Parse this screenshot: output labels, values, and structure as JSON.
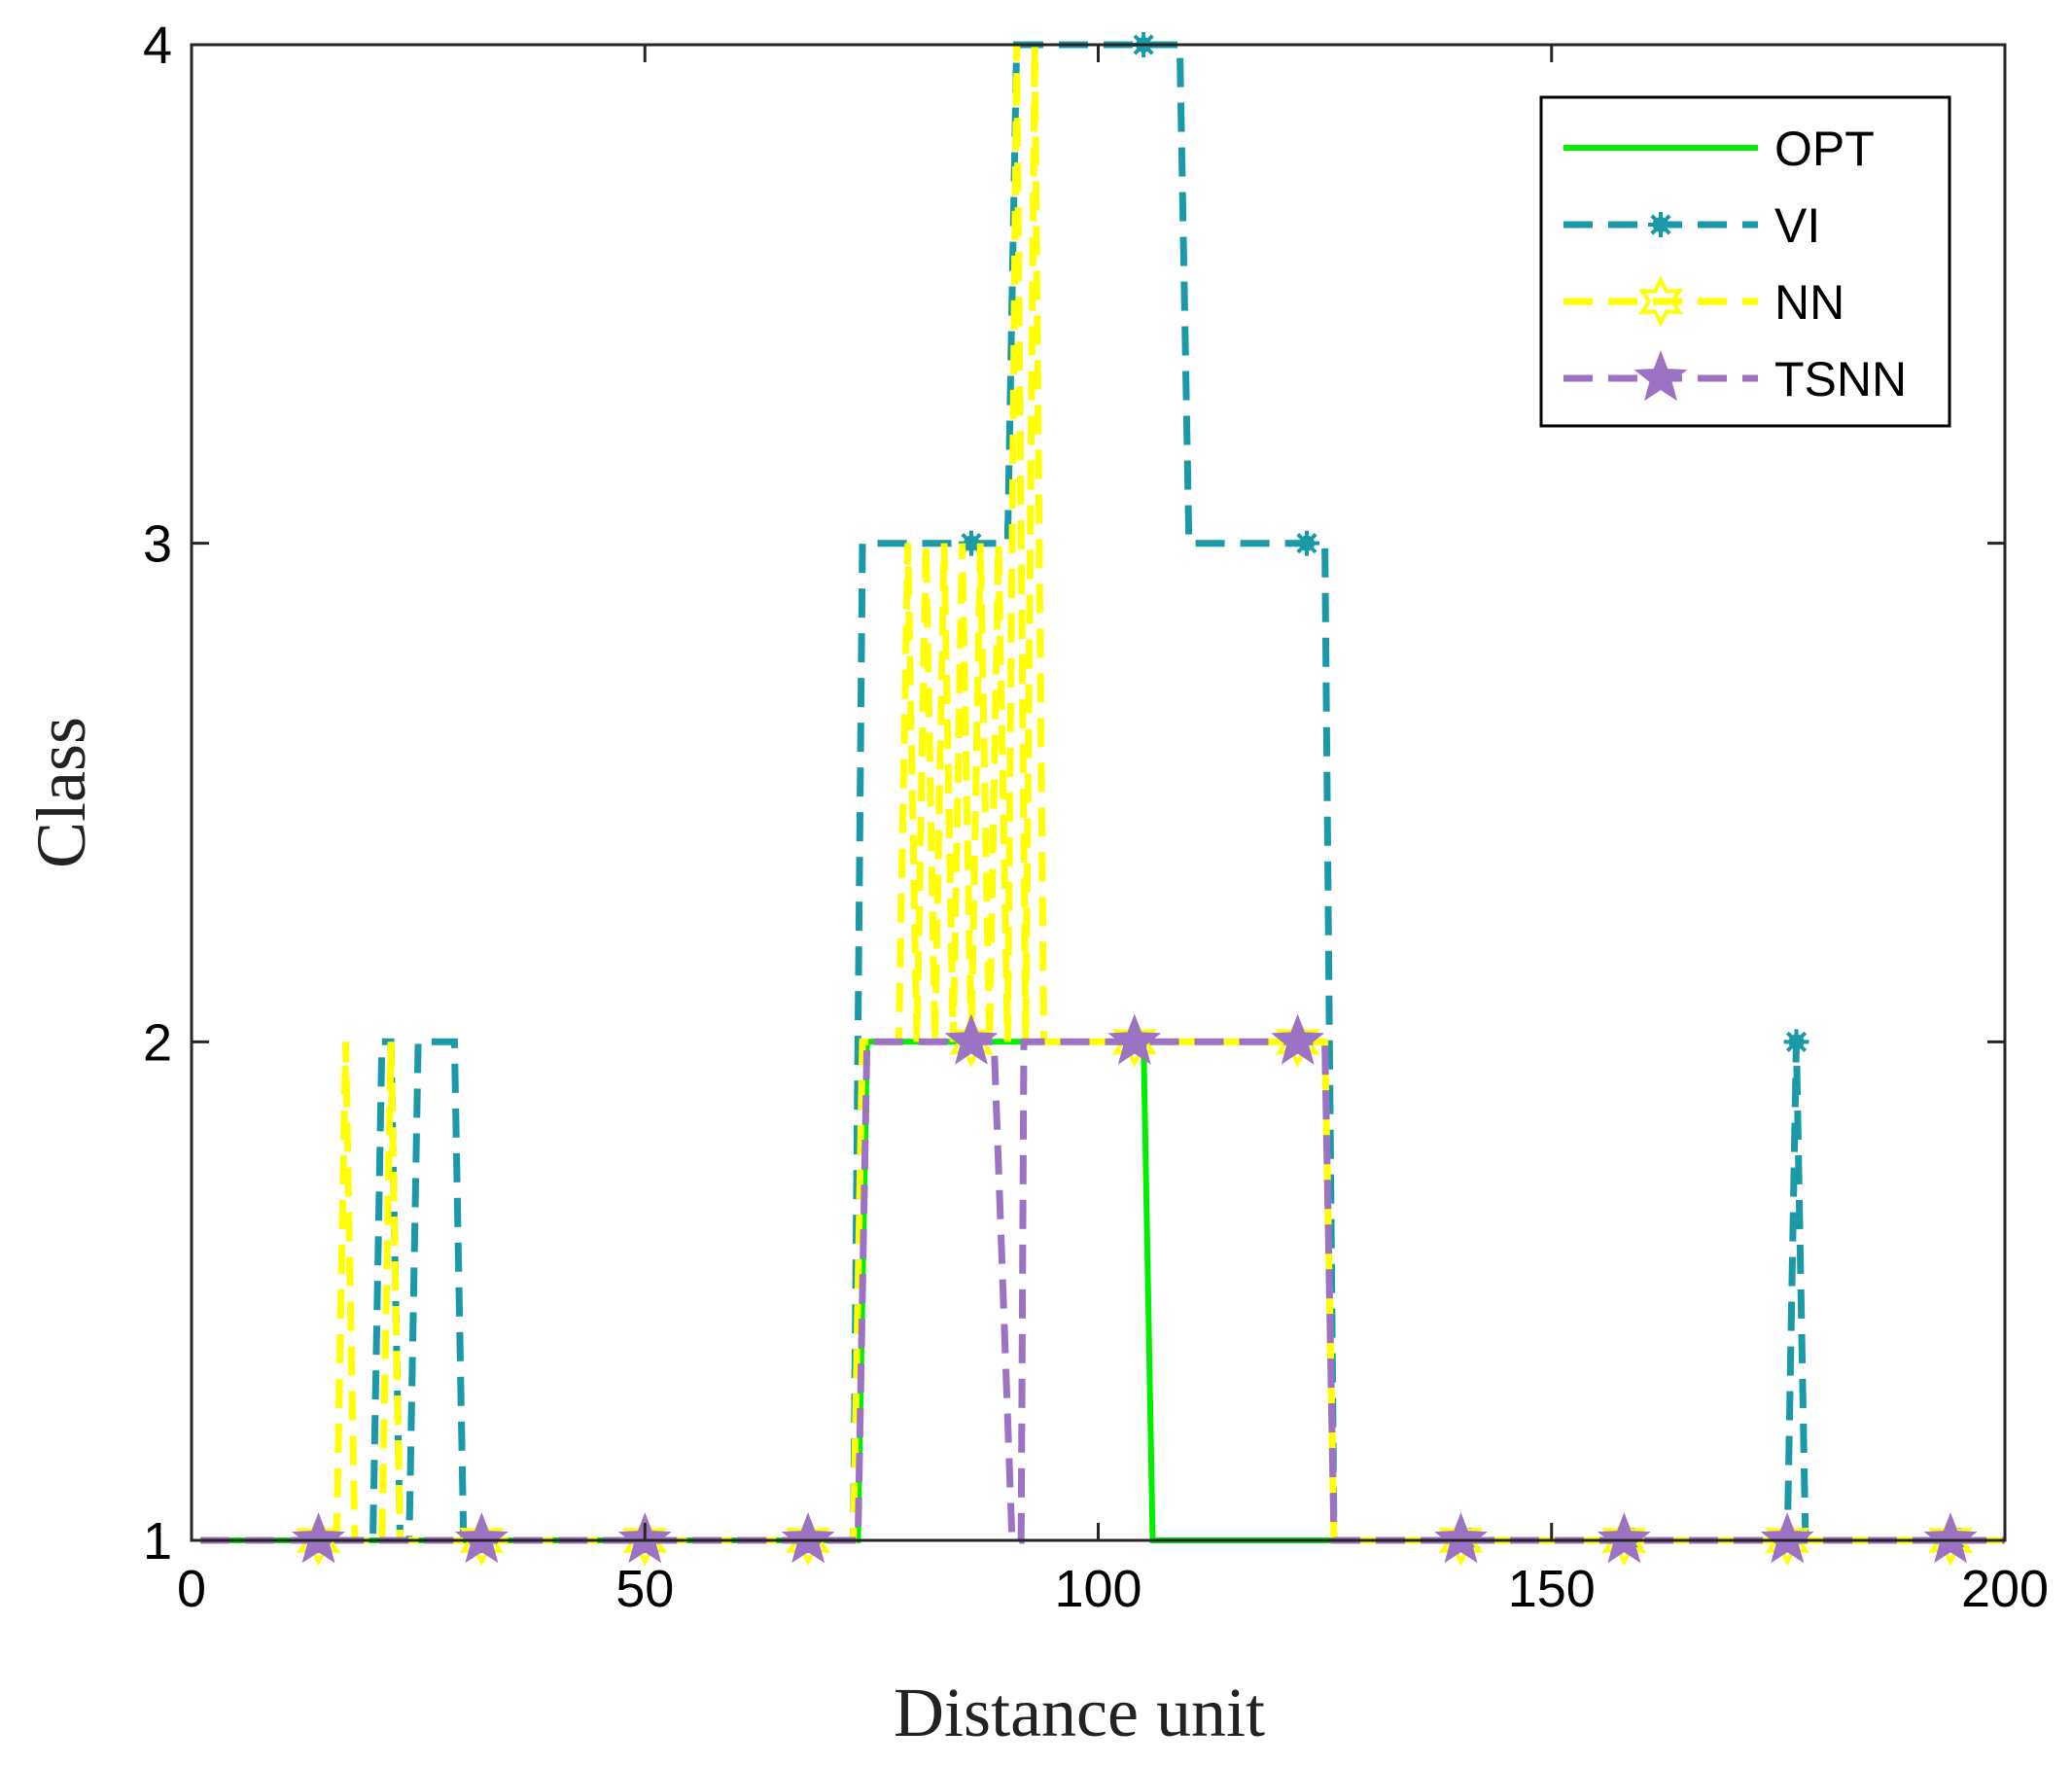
{
  "chart_data": {
    "type": "line",
    "title": "",
    "xlabel": "Distance unit",
    "ylabel": "Class",
    "xlim": [
      0,
      200
    ],
    "ylim": [
      1,
      4
    ],
    "xticks": [
      0,
      50,
      100,
      150,
      200
    ],
    "yticks": [
      1,
      2,
      3,
      4
    ],
    "xtick_labels": [
      "0",
      "50",
      "100",
      "150",
      "200"
    ],
    "ytick_labels": [
      "1",
      "2",
      "3",
      "4"
    ],
    "grid": false,
    "legend_position": "top-right",
    "series": [
      {
        "name": "OPT",
        "color": "#00ee00",
        "style": "solid",
        "marker": "none",
        "points": [
          [
            1,
            1
          ],
          [
            73.5,
            1
          ],
          [
            74.5,
            2
          ],
          [
            105,
            2
          ],
          [
            106,
            1
          ],
          [
            200,
            1
          ]
        ],
        "marker_x": []
      },
      {
        "name": "VI",
        "color": "#1a9aa6",
        "style": "dashed",
        "marker": "asterisk",
        "points": [
          [
            1,
            1
          ],
          [
            20,
            1
          ],
          [
            21,
            2
          ],
          [
            22,
            2
          ],
          [
            23,
            1
          ],
          [
            24,
            1
          ],
          [
            25,
            2
          ],
          [
            29,
            2
          ],
          [
            30,
            1
          ],
          [
            73,
            1
          ],
          [
            74,
            3
          ],
          [
            90,
            3
          ],
          [
            91,
            4
          ],
          [
            109,
            4
          ],
          [
            110,
            3
          ],
          [
            125,
            3
          ],
          [
            126,
            1
          ],
          [
            176,
            1
          ],
          [
            177,
            2
          ],
          [
            178,
            1
          ],
          [
            200,
            1
          ]
        ],
        "marker_x": [
          14,
          32,
          50,
          68,
          86,
          105,
          123,
          141,
          159,
          177,
          195
        ]
      },
      {
        "name": "NN",
        "color": "#ffff00",
        "style": "dashed",
        "marker": "hexagram",
        "points": [
          [
            1,
            1
          ],
          [
            16,
            1
          ],
          [
            17,
            2
          ],
          [
            18,
            1
          ],
          [
            21,
            1
          ],
          [
            22,
            2
          ],
          [
            23,
            1
          ],
          [
            73,
            1
          ],
          [
            74,
            2
          ],
          [
            78,
            2
          ],
          [
            79,
            3
          ],
          [
            80,
            2
          ],
          [
            81,
            3
          ],
          [
            82,
            2
          ],
          [
            83,
            3
          ],
          [
            84,
            2
          ],
          [
            85,
            3
          ],
          [
            86,
            2
          ],
          [
            87,
            3
          ],
          [
            88,
            2
          ],
          [
            89,
            3
          ],
          [
            90,
            2
          ],
          [
            91,
            4
          ],
          [
            92,
            2
          ],
          [
            93,
            4
          ],
          [
            94,
            2
          ],
          [
            125,
            2
          ],
          [
            126,
            1
          ],
          [
            200,
            1
          ]
        ],
        "marker_x": [
          14,
          32,
          50,
          68,
          86,
          104,
          122,
          140,
          158,
          176,
          194
        ]
      },
      {
        "name": "TSNN",
        "color": "#9b72c4",
        "style": "dashed",
        "marker": "pentagram",
        "points": [
          [
            1,
            1
          ],
          [
            73.5,
            1
          ],
          [
            74.5,
            2
          ],
          [
            88.5,
            2
          ],
          [
            90.5,
            1
          ],
          [
            91.5,
            1
          ],
          [
            91.8,
            2
          ],
          [
            125,
            2
          ],
          [
            126,
            1
          ],
          [
            200,
            1
          ]
        ],
        "marker_x": [
          14,
          32,
          50,
          68,
          86,
          104,
          122,
          140,
          158,
          176,
          194
        ]
      }
    ]
  }
}
